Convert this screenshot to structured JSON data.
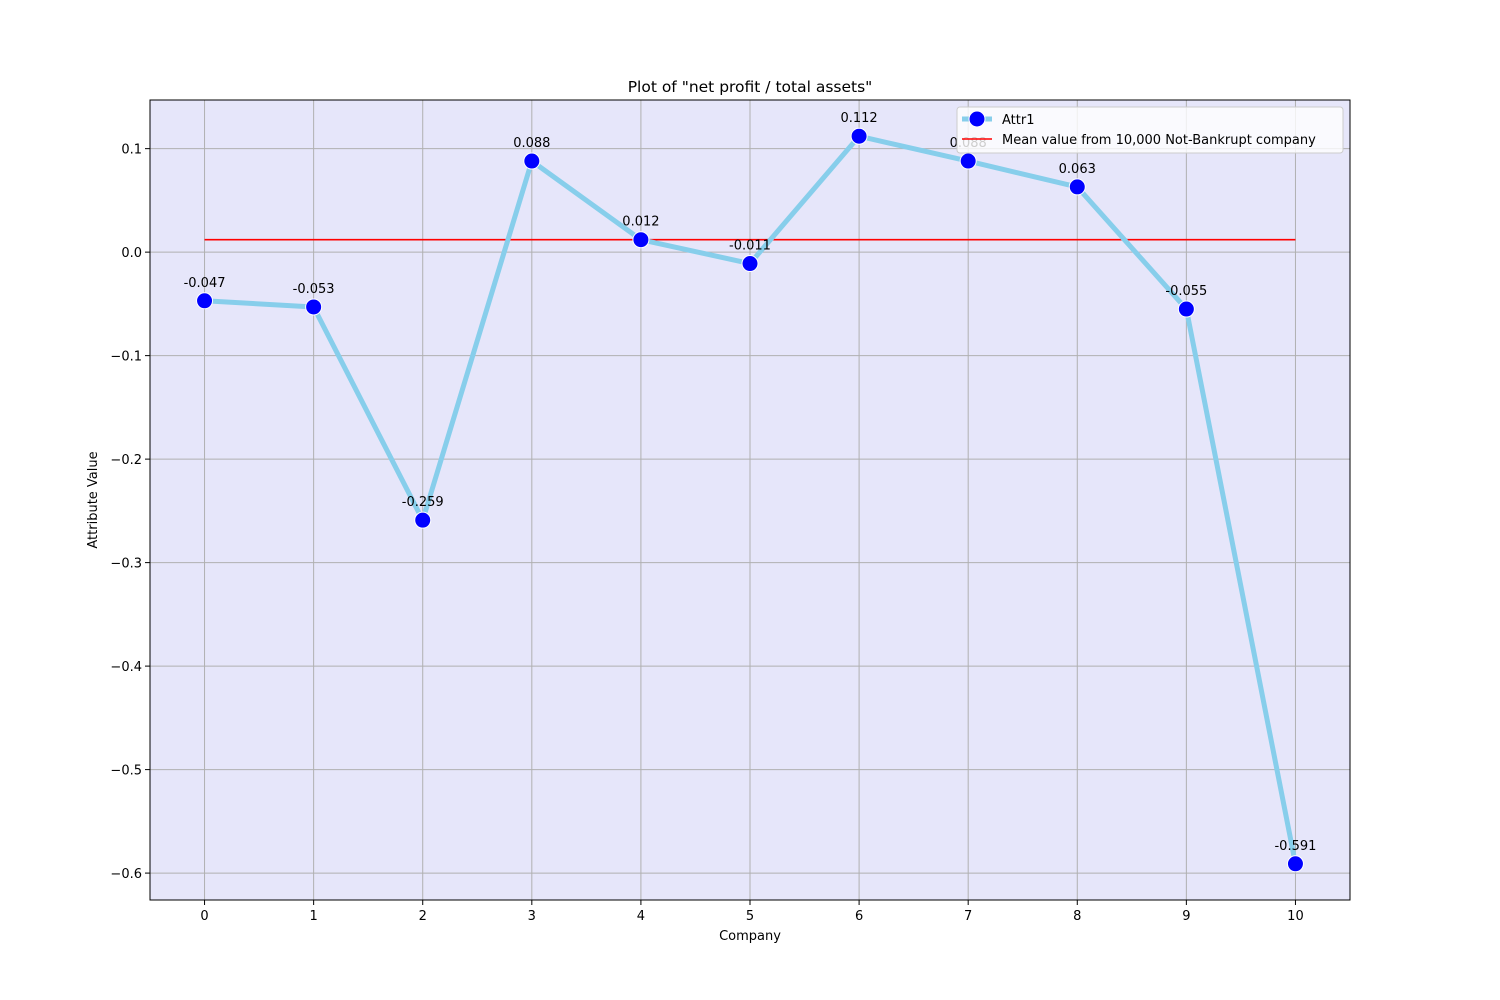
{
  "chart_data": {
    "type": "line",
    "title": "Plot of \"net profit / total assets\"",
    "xlabel": "Company",
    "ylabel": "Attribute Value",
    "x": [
      0,
      1,
      2,
      3,
      4,
      5,
      6,
      7,
      8,
      9,
      10
    ],
    "xticks": [
      "0",
      "1",
      "2",
      "3",
      "4",
      "5",
      "6",
      "7",
      "8",
      "9",
      "10"
    ],
    "xlim": [
      -0.5,
      10.5
    ],
    "ylim": [
      -0.626,
      0.147
    ],
    "yticks": [
      0.1,
      0.0,
      -0.1,
      -0.2,
      -0.3,
      -0.4,
      -0.5,
      -0.6
    ],
    "ytick_labels": [
      "0.1",
      "0.0",
      "−0.1",
      "−0.2",
      "−0.3",
      "−0.4",
      "−0.5",
      "−0.6"
    ],
    "grid": true,
    "legend_position": "top-right",
    "background_color": "#e6e6fa",
    "series": [
      {
        "name": "Attr1",
        "values": [
          -0.047,
          -0.053,
          -0.259,
          0.088,
          0.012,
          -0.011,
          0.112,
          0.088,
          0.063,
          -0.055,
          -0.591
        ],
        "data_labels": [
          "-0.047",
          "-0.053",
          "-0.259",
          "0.088",
          "0.012",
          "-0.011",
          "0.112",
          "0.088",
          "0.063",
          "-0.055",
          "-0.591"
        ],
        "line_color": "#87ceeb",
        "marker_color": "#0000ff"
      },
      {
        "name": "Mean value from 10,000 Not-Bankrupt company",
        "type": "hline",
        "value": 0.012,
        "x_range": [
          0,
          10
        ],
        "line_color": "#ff0000"
      }
    ]
  }
}
